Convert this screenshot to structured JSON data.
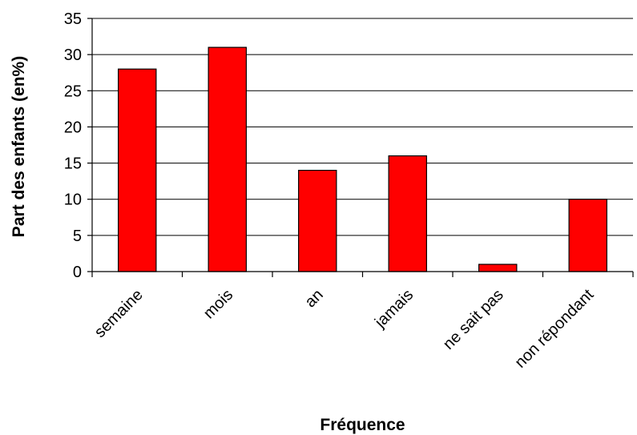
{
  "chart_data": {
    "type": "bar",
    "title": "",
    "xlabel": "Fréquence",
    "ylabel": "Part des enfants (en%)",
    "categories": [
      "semaine",
      "mois",
      "an",
      "jamais",
      "ne sait pas",
      "non répondant"
    ],
    "values": [
      28,
      31,
      14,
      16,
      1,
      10
    ],
    "ylim": [
      0,
      35
    ],
    "yticks": [
      0,
      5,
      10,
      15,
      20,
      25,
      30,
      35
    ],
    "grid": true,
    "legend": "none",
    "bar_color": "#ff0000",
    "bar_edge_color": "#000000"
  }
}
